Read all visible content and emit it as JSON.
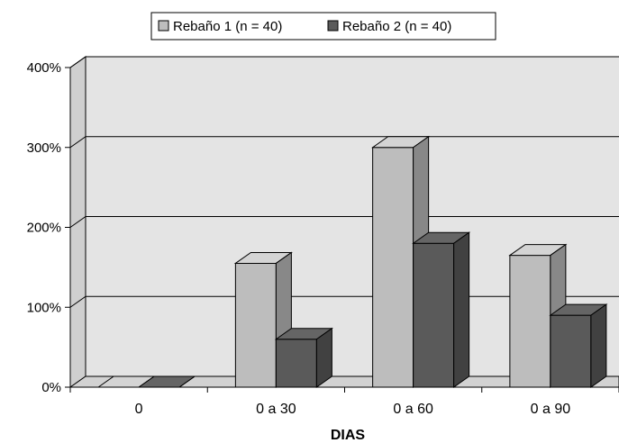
{
  "chart_data": {
    "type": "bar",
    "style": "3d-clustered-column",
    "categories": [
      "0",
      "0 a 30",
      "0 a 60",
      "0 a 90"
    ],
    "series": [
      {
        "name": "Rebaño 1 (n = 40)",
        "values": [
          0,
          155,
          300,
          165
        ],
        "color": "#bdbdbd"
      },
      {
        "name": "Rebaño 2 (n = 40)",
        "values": [
          0,
          60,
          180,
          90
        ],
        "color": "#5a5a5a"
      }
    ],
    "y_ticks": [
      "0%",
      "100%",
      "200%",
      "300%",
      "400%"
    ],
    "ylim": [
      0,
      400
    ],
    "xlabel": "DIAS",
    "ylabel": "",
    "grid": true,
    "legend_position": "top-center",
    "wall_color": "#e4e4e4"
  }
}
